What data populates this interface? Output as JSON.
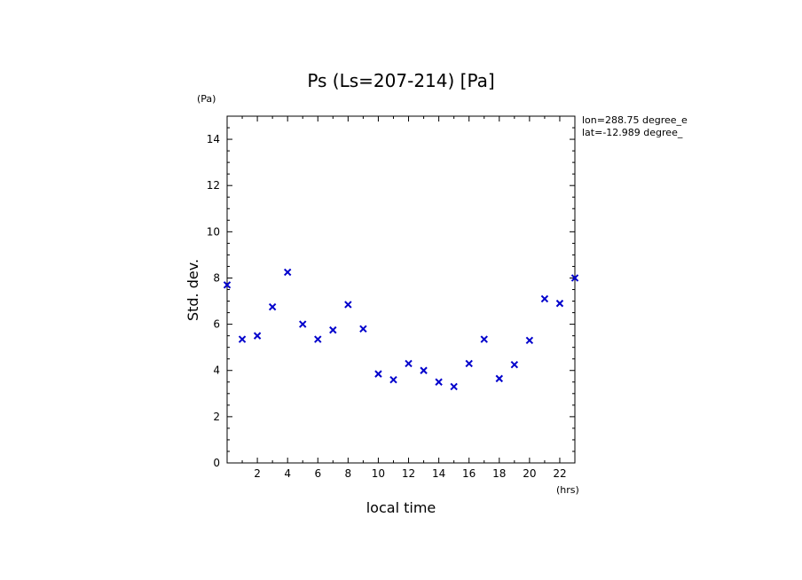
{
  "chart_data": {
    "type": "scatter",
    "title": "Ps (Ls=207-214) [Pa]",
    "xlabel": "local time",
    "ylabel": "Std. dev.",
    "x_unit": "(hrs)",
    "y_unit": "(Pa)",
    "xlim": [
      0,
      23
    ],
    "ylim": [
      0,
      15
    ],
    "x_ticks": [
      2,
      4,
      6,
      8,
      10,
      12,
      14,
      16,
      18,
      20,
      22
    ],
    "y_ticks": [
      0,
      2,
      4,
      6,
      8,
      10,
      12,
      14
    ],
    "annotations": [
      "lon=288.75 degree_e",
      "lat=-12.989 degree_"
    ],
    "marker": "x",
    "marker_color": "#0000cc",
    "grid": false,
    "x": [
      0,
      1,
      2,
      3,
      4,
      5,
      6,
      7,
      8,
      9,
      10,
      11,
      12,
      13,
      14,
      15,
      16,
      17,
      18,
      19,
      20,
      21,
      22,
      23
    ],
    "y": [
      7.7,
      5.35,
      5.5,
      6.75,
      8.25,
      6.0,
      5.35,
      5.75,
      6.85,
      5.8,
      3.85,
      3.6,
      4.3,
      4.0,
      3.5,
      3.3,
      4.3,
      5.35,
      3.65,
      4.25,
      5.3,
      7.1,
      6.9,
      8.0
    ]
  }
}
